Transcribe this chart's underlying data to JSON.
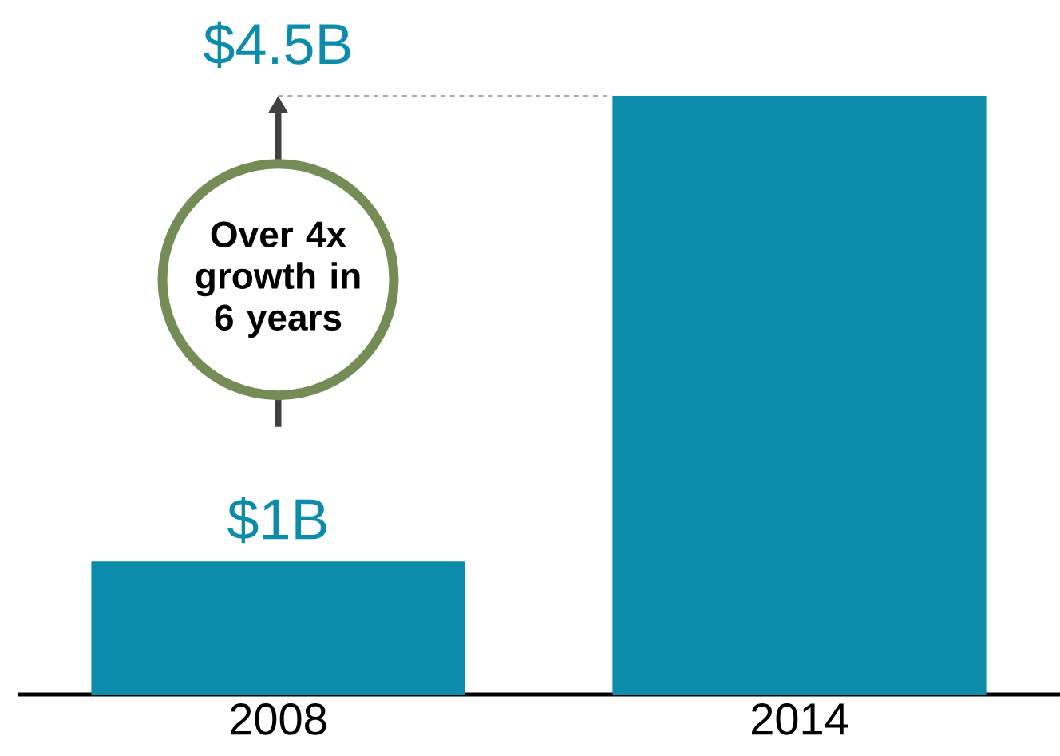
{
  "chart_data": {
    "type": "bar",
    "categories": [
      "2008",
      "2014"
    ],
    "values": [
      1,
      4.5
    ],
    "color": "#0d8bab",
    "value_labels": [
      "$1B",
      null
    ],
    "ref_lines": [
      {
        "axis": "y",
        "value": 4.5,
        "color": "#555555",
        "line_style": "dashed"
      }
    ],
    "annotations": [
      "Over 4x growth in 6 years",
      {
        "text": "$4.5B",
        "x": "2008",
        "y": 4.5
      }
    ]
  }
}
